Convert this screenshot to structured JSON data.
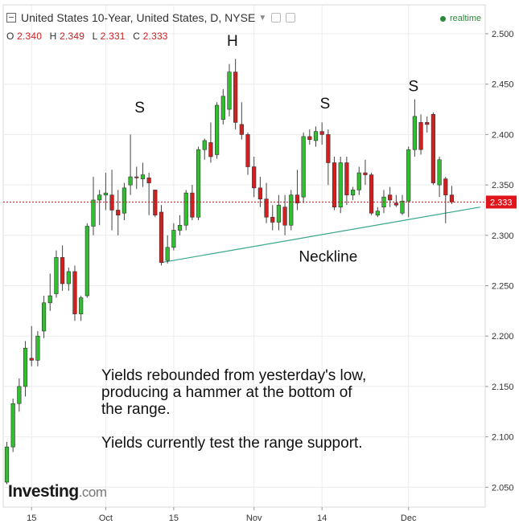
{
  "header": {
    "title": "United States 10-Year, United States, D, NYSE",
    "realtime_label": "realtime"
  },
  "ohlc": {
    "o_label": "O",
    "o_value": "2.340",
    "h_label": "H",
    "h_value": "2.349",
    "l_label": "L",
    "l_value": "2.331",
    "c_label": "C",
    "c_value": "2.333"
  },
  "logo": {
    "name": "Investing",
    "domain": ".com"
  },
  "colors": {
    "up": "#2fbf2f",
    "down": "#d21f1f",
    "neckline": "#3aa58e",
    "price_line": "#c8141a"
  },
  "chart_data": {
    "type": "candlestick",
    "y_range": [
      2.03,
      2.515
    ],
    "y_ticks": [
      "2.050",
      "2.100",
      "2.150",
      "2.200",
      "2.250",
      "2.300",
      "2.350",
      "2.400",
      "2.450",
      "2.500"
    ],
    "x_ticks": [
      {
        "label": "15",
        "index": 4
      },
      {
        "label": "Oct",
        "index": 16
      },
      {
        "label": "15",
        "index": 27
      },
      {
        "label": "Nov",
        "index": 40
      },
      {
        "label": "14",
        "index": 51
      },
      {
        "label": "Dec",
        "index": 65
      }
    ],
    "candles": [
      {
        "o": 2.055,
        "h": 2.095,
        "l": 2.053,
        "c": 2.09
      },
      {
        "o": 2.09,
        "h": 2.138,
        "l": 2.085,
        "c": 2.133
      },
      {
        "o": 2.133,
        "h": 2.158,
        "l": 2.125,
        "c": 2.15
      },
      {
        "o": 2.15,
        "h": 2.195,
        "l": 2.14,
        "c": 2.188
      },
      {
        "o": 2.178,
        "h": 2.21,
        "l": 2.17,
        "c": 2.176
      },
      {
        "o": 2.176,
        "h": 2.205,
        "l": 2.17,
        "c": 2.2
      },
      {
        "o": 2.205,
        "h": 2.24,
        "l": 2.198,
        "c": 2.233
      },
      {
        "o": 2.233,
        "h": 2.262,
        "l": 2.225,
        "c": 2.24
      },
      {
        "o": 2.242,
        "h": 2.285,
        "l": 2.238,
        "c": 2.278
      },
      {
        "o": 2.278,
        "h": 2.29,
        "l": 2.245,
        "c": 2.252
      },
      {
        "o": 2.252,
        "h": 2.268,
        "l": 2.245,
        "c": 2.264
      },
      {
        "o": 2.264,
        "h": 2.27,
        "l": 2.215,
        "c": 2.222
      },
      {
        "o": 2.222,
        "h": 2.24,
        "l": 2.215,
        "c": 2.238
      },
      {
        "o": 2.24,
        "h": 2.312,
        "l": 2.238,
        "c": 2.309
      },
      {
        "o": 2.309,
        "h": 2.358,
        "l": 2.3,
        "c": 2.335
      },
      {
        "o": 2.335,
        "h": 2.345,
        "l": 2.31,
        "c": 2.34
      },
      {
        "o": 2.34,
        "h": 2.362,
        "l": 2.325,
        "c": 2.342
      },
      {
        "o": 2.34,
        "h": 2.365,
        "l": 2.305,
        "c": 2.325
      },
      {
        "o": 2.325,
        "h": 2.345,
        "l": 2.3,
        "c": 2.32
      },
      {
        "o": 2.322,
        "h": 2.352,
        "l": 2.315,
        "c": 2.347
      },
      {
        "o": 2.35,
        "h": 2.4,
        "l": 2.34,
        "c": 2.358
      },
      {
        "o": 2.358,
        "h": 2.368,
        "l": 2.346,
        "c": 2.357
      },
      {
        "o": 2.356,
        "h": 2.372,
        "l": 2.348,
        "c": 2.36
      },
      {
        "o": 2.357,
        "h": 2.362,
        "l": 2.32,
        "c": 2.352
      },
      {
        "o": 2.345,
        "h": 2.342,
        "l": 2.318,
        "c": 2.32
      },
      {
        "o": 2.323,
        "h": 2.33,
        "l": 2.27,
        "c": 2.273
      },
      {
        "o": 2.275,
        "h": 2.3,
        "l": 2.272,
        "c": 2.288
      },
      {
        "o": 2.288,
        "h": 2.312,
        "l": 2.285,
        "c": 2.305
      },
      {
        "o": 2.305,
        "h": 2.32,
        "l": 2.3,
        "c": 2.31
      },
      {
        "o": 2.31,
        "h": 2.345,
        "l": 2.305,
        "c": 2.342
      },
      {
        "o": 2.342,
        "h": 2.35,
        "l": 2.315,
        "c": 2.318
      },
      {
        "o": 2.318,
        "h": 2.388,
        "l": 2.315,
        "c": 2.385
      },
      {
        "o": 2.385,
        "h": 2.396,
        "l": 2.375,
        "c": 2.394
      },
      {
        "o": 2.392,
        "h": 2.412,
        "l": 2.372,
        "c": 2.378
      },
      {
        "o": 2.38,
        "h": 2.432,
        "l": 2.376,
        "c": 2.429
      },
      {
        "o": 2.415,
        "h": 2.445,
        "l": 2.41,
        "c": 2.438
      },
      {
        "o": 2.425,
        "h": 2.47,
        "l": 2.418,
        "c": 2.462
      },
      {
        "o": 2.462,
        "h": 2.475,
        "l": 2.405,
        "c": 2.412
      },
      {
        "o": 2.41,
        "h": 2.432,
        "l": 2.395,
        "c": 2.4
      },
      {
        "o": 2.4,
        "h": 2.402,
        "l": 2.36,
        "c": 2.368
      },
      {
        "o": 2.368,
        "h": 2.378,
        "l": 2.338,
        "c": 2.347
      },
      {
        "o": 2.347,
        "h": 2.358,
        "l": 2.328,
        "c": 2.336
      },
      {
        "o": 2.336,
        "h": 2.352,
        "l": 2.312,
        "c": 2.318
      },
      {
        "o": 2.318,
        "h": 2.33,
        "l": 2.305,
        "c": 2.313
      },
      {
        "o": 2.313,
        "h": 2.34,
        "l": 2.305,
        "c": 2.33
      },
      {
        "o": 2.328,
        "h": 2.34,
        "l": 2.3,
        "c": 2.31
      },
      {
        "o": 2.31,
        "h": 2.345,
        "l": 2.305,
        "c": 2.34
      },
      {
        "o": 2.34,
        "h": 2.365,
        "l": 2.325,
        "c": 2.332
      },
      {
        "o": 2.338,
        "h": 2.402,
        "l": 2.332,
        "c": 2.398
      },
      {
        "o": 2.398,
        "h": 2.405,
        "l": 2.39,
        "c": 2.395
      },
      {
        "o": 2.394,
        "h": 2.408,
        "l": 2.388,
        "c": 2.403
      },
      {
        "o": 2.403,
        "h": 2.412,
        "l": 2.39,
        "c": 2.4
      },
      {
        "o": 2.4,
        "h": 2.405,
        "l": 2.35,
        "c": 2.372
      },
      {
        "o": 2.372,
        "h": 2.378,
        "l": 2.325,
        "c": 2.328
      },
      {
        "o": 2.328,
        "h": 2.378,
        "l": 2.322,
        "c": 2.372
      },
      {
        "o": 2.372,
        "h": 2.378,
        "l": 2.33,
        "c": 2.34
      },
      {
        "o": 2.34,
        "h": 2.348,
        "l": 2.335,
        "c": 2.345
      },
      {
        "o": 2.345,
        "h": 2.368,
        "l": 2.34,
        "c": 2.362
      },
      {
        "o": 2.362,
        "h": 2.375,
        "l": 2.35,
        "c": 2.36
      },
      {
        "o": 2.36,
        "h": 2.362,
        "l": 2.32,
        "c": 2.322
      },
      {
        "o": 2.32,
        "h": 2.328,
        "l": 2.318,
        "c": 2.324
      },
      {
        "o": 2.328,
        "h": 2.345,
        "l": 2.322,
        "c": 2.338
      },
      {
        "o": 2.34,
        "h": 2.348,
        "l": 2.328,
        "c": 2.335
      },
      {
        "o": 2.332,
        "h": 2.34,
        "l": 2.328,
        "c": 2.33
      },
      {
        "o": 2.322,
        "h": 2.34,
        "l": 2.32,
        "c": 2.334
      },
      {
        "o": 2.334,
        "h": 2.388,
        "l": 2.318,
        "c": 2.385
      },
      {
        "o": 2.385,
        "h": 2.435,
        "l": 2.378,
        "c": 2.418
      },
      {
        "o": 2.412,
        "h": 2.42,
        "l": 2.38,
        "c": 2.385
      },
      {
        "o": 2.412,
        "h": 2.418,
        "l": 2.402,
        "c": 2.41
      },
      {
        "o": 2.42,
        "h": 2.422,
        "l": 2.35,
        "c": 2.352
      },
      {
        "o": 2.35,
        "h": 2.378,
        "l": 2.338,
        "c": 2.375
      },
      {
        "o": 2.356,
        "h": 2.358,
        "l": 2.312,
        "c": 2.34
      },
      {
        "o": 2.34,
        "h": 2.349,
        "l": 2.331,
        "c": 2.333
      }
    ],
    "neckline": {
      "from": {
        "index": 25,
        "value": 2.273
      },
      "to": {
        "index": 74,
        "value": 2.324
      }
    },
    "current_price": {
      "value": 2.333,
      "label": "2.333"
    },
    "annotations": [
      {
        "text": "S",
        "index": 21.5,
        "value": 2.422
      },
      {
        "text": "H",
        "index": 36.5,
        "value": 2.488
      },
      {
        "text": "S",
        "index": 51.5,
        "value": 2.426
      },
      {
        "text": "S",
        "index": 65.8,
        "value": 2.443
      },
      {
        "text": "Neckline",
        "index": 52,
        "value": 2.274
      }
    ],
    "commentary": [
      "Yields rebounded from yesterday's low,",
      "producing a hammer at the bottom of",
      "the range.",
      "",
      "Yields currently test the range support."
    ]
  }
}
